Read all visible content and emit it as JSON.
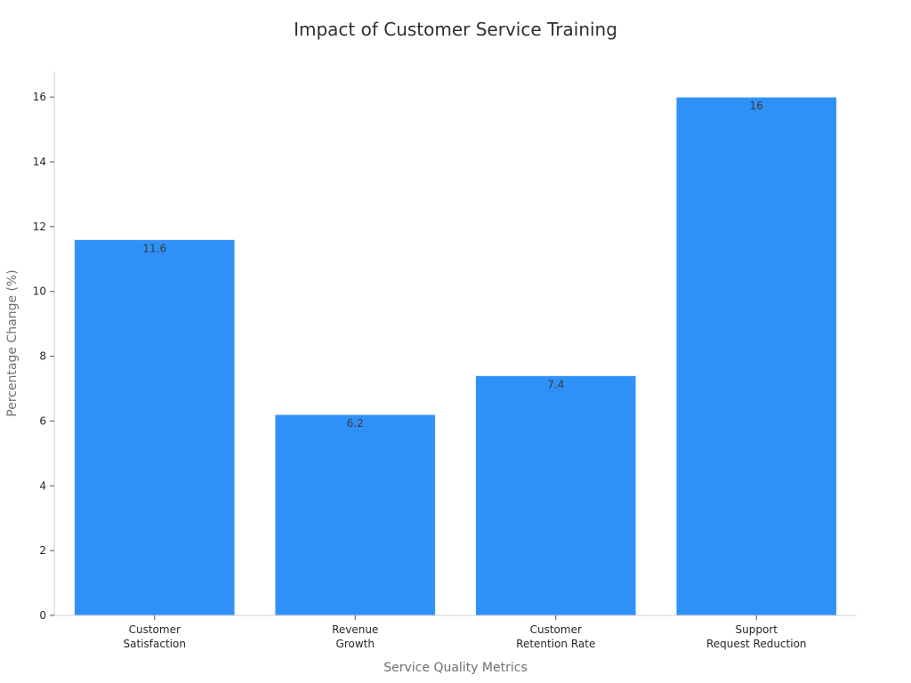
{
  "chart_data": {
    "type": "bar",
    "title": "Impact of Customer Service Training",
    "xlabel": "Service Quality Metrics",
    "ylabel": "Percentage Change (%)",
    "categories": [
      [
        "Customer",
        "Satisfaction"
      ],
      [
        "Revenue",
        "Growth"
      ],
      [
        "Customer",
        "Retention Rate"
      ],
      [
        "Support",
        "Request Reduction"
      ]
    ],
    "values": [
      11.6,
      6.2,
      7.4,
      16
    ],
    "data_labels": [
      "11.6",
      "6.2",
      "7.4",
      "16"
    ],
    "ylim": [
      0,
      16.8
    ],
    "yticks": [
      0,
      2,
      4,
      6,
      8,
      10,
      12,
      14,
      16
    ],
    "grid": false,
    "legend": "none",
    "bar_color": "#2f91f8",
    "bar_edge_color": "#e6f0ff"
  }
}
